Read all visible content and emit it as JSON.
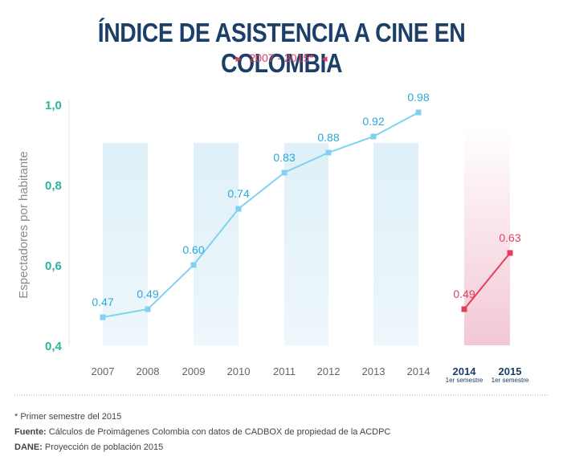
{
  "title": "ÍNDICE DE ASISTENCIA A CINE EN COLOMBIA",
  "subtitle": "2007 - 2015*",
  "colors": {
    "title": "#1b3f68",
    "accent": "#e63d5c",
    "series_main": "#7fd3f0",
    "label_main": "#29a9d9",
    "series_semester": "#e63d5c",
    "axis": "#2bb39b",
    "navy": "#1b3f68"
  },
  "chart_data": {
    "type": "line",
    "ylabel": "Espectadores por habitante",
    "ylim": [
      0.4,
      1.0
    ],
    "yticks": [
      "0,4",
      "0,6",
      "0,8",
      "1,0"
    ],
    "ytick_values": [
      0.4,
      0.6,
      0.8,
      1.0
    ],
    "grid": false,
    "series": [
      {
        "categories": [
          "2007",
          "2008",
          "2009",
          "2010",
          "2011",
          "2012",
          "2013",
          "2014"
        ],
        "values": [
          0.47,
          0.49,
          0.6,
          0.74,
          0.83,
          0.88,
          0.92,
          0.98
        ],
        "labels": [
          "0.47",
          "0.49",
          "0.60",
          "0.74",
          "0.83",
          "0.88",
          "0.92",
          "0.98"
        ]
      },
      {
        "categories": [
          "2014",
          "2015"
        ],
        "category_notes": [
          "1er semestre",
          "1er semestre"
        ],
        "values": [
          0.49,
          0.63
        ],
        "labels": [
          "0.49",
          "0.63"
        ]
      }
    ]
  },
  "footer": {
    "note": "* Primer semestre del 2015",
    "source_label": "Fuente:",
    "source_text": " Cálculos de Proimágenes Colombia con datos de CADBOX de propiedad de la ACDPC",
    "dane_label": "DANE:",
    "dane_text": " Proyección de población 2015"
  }
}
